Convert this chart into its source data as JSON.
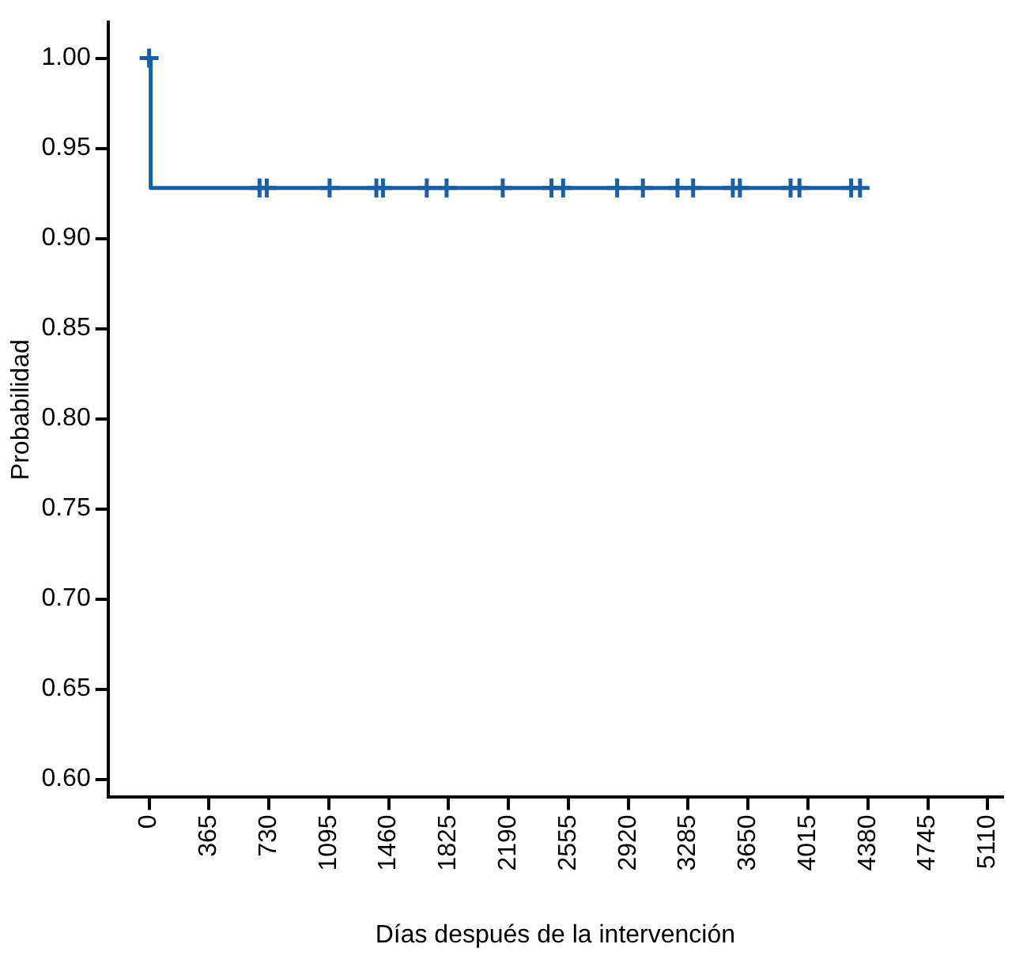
{
  "chart_data": {
    "type": "step",
    "xlabel": "Días después de la intervención",
    "ylabel": "Probabilidad",
    "xlim": [
      -250,
      5200
    ],
    "xticks": [
      0,
      365,
      730,
      1095,
      1460,
      1825,
      2190,
      2555,
      2920,
      3285,
      3650,
      4015,
      4380,
      4745,
      5110
    ],
    "ylim": [
      0.59,
      1.02
    ],
    "yticks": [
      {
        "value": 0.6,
        "label": "0.60"
      },
      {
        "value": 0.65,
        "label": "0.65"
      },
      {
        "value": 0.7,
        "label": "0.70"
      },
      {
        "value": 0.75,
        "label": "0.75"
      },
      {
        "value": 0.8,
        "label": "0.80"
      },
      {
        "value": 0.85,
        "label": "0.85"
      },
      {
        "value": 0.9,
        "label": "0.90"
      },
      {
        "value": 0.95,
        "label": "0.95"
      },
      {
        "value": 1,
        "label": "1.00"
      }
    ],
    "grid": false,
    "legend": false,
    "series": [
      {
        "color": "#1a5ea6",
        "x": [
          0,
          10,
          4332
        ],
        "values": [
          1,
          0.928,
          0.928
        ]
      },
      {
        "type": "scatter",
        "marker": "cross",
        "color": "#1a5ea6",
        "x": [
          0,
          673,
          717,
          1100,
          1385,
          1425,
          1692,
          1813,
          2155,
          2452,
          2523,
          2852,
          3009,
          3220,
          3315,
          3557,
          3600,
          3909,
          3963,
          4278,
          4332
        ],
        "values": [
          1,
          0.928,
          0.928,
          0.928,
          0.928,
          0.928,
          0.928,
          0.928,
          0.928,
          0.928,
          0.928,
          0.928,
          0.928,
          0.928,
          0.928,
          0.928,
          0.928,
          0.928,
          0.928,
          0.928,
          0.928
        ]
      }
    ]
  }
}
